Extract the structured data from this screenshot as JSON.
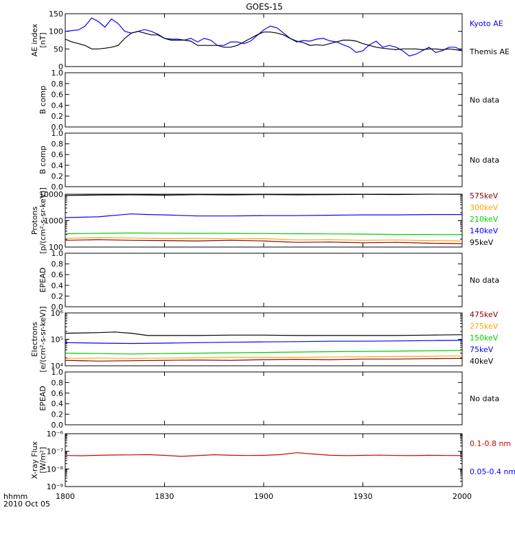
{
  "title": "GOES-15",
  "time_axis": {
    "ticks": [
      "1800",
      "1830",
      "1900",
      "1930",
      "2000"
    ],
    "label_row1": "hhmm",
    "label_row2": "2010 Oct 05"
  },
  "chart_data": [
    {
      "type": "line",
      "name": "ae",
      "ylabel": "AE index",
      "ylabel2": "[nT]",
      "ylim": [
        0,
        150
      ],
      "yticks": [
        "0",
        "50",
        "100",
        "150"
      ],
      "xlim": [
        0,
        120
      ],
      "series": [
        {
          "name": "Kyoto AE",
          "color": "#0000ff",
          "x": [
            0,
            2,
            4,
            6,
            8,
            10,
            12,
            14,
            16,
            18,
            20,
            22,
            24,
            26,
            28,
            30,
            32,
            34,
            36,
            38,
            40,
            42,
            44,
            46,
            48,
            50,
            52,
            54,
            56,
            58,
            60,
            62,
            64,
            66,
            68,
            70,
            72,
            74,
            76,
            78,
            80,
            82,
            84,
            86,
            88,
            90,
            92,
            94,
            96,
            98,
            100,
            102,
            104,
            106,
            108,
            110,
            112,
            114,
            116,
            118,
            120
          ],
          "y": [
            100,
            102,
            104,
            115,
            138,
            128,
            112,
            135,
            122,
            100,
            95,
            100,
            105,
            100,
            92,
            80,
            78,
            78,
            75,
            80,
            70,
            80,
            75,
            60,
            60,
            70,
            70,
            65,
            72,
            88,
            104,
            115,
            110,
            95,
            80,
            70,
            74,
            72,
            78,
            80,
            73,
            70,
            62,
            55,
            40,
            45,
            62,
            72,
            55,
            60,
            55,
            45,
            30,
            35,
            45,
            55,
            40,
            45,
            55,
            55,
            45
          ]
        },
        {
          "name": "Themis AE",
          "color": "#000000",
          "x": [
            0,
            2,
            4,
            6,
            8,
            10,
            12,
            14,
            16,
            18,
            20,
            22,
            24,
            26,
            28,
            30,
            32,
            34,
            36,
            38,
            40,
            42,
            44,
            46,
            48,
            50,
            52,
            54,
            56,
            58,
            60,
            62,
            64,
            66,
            68,
            70,
            72,
            74,
            76,
            78,
            80,
            82,
            84,
            86,
            88,
            90,
            92,
            94,
            96,
            98,
            100,
            102,
            104,
            106,
            108,
            110,
            112,
            114,
            116,
            118,
            120
          ],
          "y": [
            78,
            70,
            65,
            60,
            50,
            50,
            52,
            55,
            60,
            80,
            95,
            100,
            95,
            90,
            90,
            80,
            75,
            75,
            75,
            72,
            60,
            60,
            60,
            60,
            55,
            55,
            60,
            70,
            80,
            90,
            98,
            98,
            95,
            90,
            80,
            72,
            68,
            60,
            62,
            60,
            65,
            70,
            75,
            75,
            72,
            65,
            60,
            55,
            52,
            50,
            48,
            50,
            50,
            50,
            48,
            50,
            50,
            48,
            50,
            48,
            45
          ]
        }
      ],
      "legend": [
        {
          "text": "Kyoto AE",
          "color": "#0000ff"
        },
        {
          "text": "Themis AE",
          "color": "#000000"
        }
      ]
    },
    {
      "type": "line",
      "name": "bcomp1",
      "ylabel": "B comp",
      "ylim": [
        0,
        1
      ],
      "yticks": [
        "0.0",
        "0.2",
        "0.4",
        "0.6",
        "0.8",
        "1.0"
      ],
      "series": [],
      "status": "No data"
    },
    {
      "type": "line",
      "name": "bcomp2",
      "ylabel": "B comp",
      "ylim": [
        0,
        1
      ],
      "yticks": [
        "0.0",
        "0.2",
        "0.4",
        "0.6",
        "0.8",
        "1.0"
      ],
      "series": [],
      "status": "No data"
    },
    {
      "type": "line",
      "name": "protons",
      "ylabel": "Protons",
      "ylabel2": "[p/(cm²-s-sr-keV)]",
      "yscale": "log",
      "ylim": [
        100,
        10000
      ],
      "yticks": [
        "100",
        "1000",
        "10000"
      ],
      "xlim": [
        0,
        120
      ],
      "series": [
        {
          "name": "95keV",
          "color": "#000000",
          "x": [
            0,
            10,
            20,
            30,
            40,
            50,
            60,
            70,
            80,
            90,
            100,
            110,
            120
          ],
          "y": [
            9000,
            9300,
            9500,
            9200,
            9600,
            9400,
            9700,
            9500,
            9600,
            9800,
            9700,
            10000,
            9900
          ]
        },
        {
          "name": "140keV",
          "color": "#0000ff",
          "x": [
            0,
            10,
            20,
            25,
            30,
            40,
            50,
            60,
            70,
            80,
            90,
            100,
            110,
            120
          ],
          "y": [
            1300,
            1400,
            1800,
            1700,
            1650,
            1500,
            1500,
            1550,
            1550,
            1600,
            1650,
            1650,
            1700,
            1700
          ]
        },
        {
          "name": "210keV",
          "color": "#00cc00",
          "x": [
            0,
            10,
            20,
            30,
            40,
            50,
            60,
            70,
            80,
            90,
            100,
            110,
            120
          ],
          "y": [
            320,
            330,
            340,
            335,
            330,
            330,
            325,
            320,
            315,
            310,
            300,
            300,
            295
          ]
        },
        {
          "name": "300keV",
          "color": "#ffa500",
          "x": [
            0,
            10,
            20,
            30,
            40,
            50,
            60,
            70,
            80,
            90,
            100,
            110,
            120
          ],
          "y": [
            215,
            225,
            220,
            210,
            215,
            205,
            210,
            185,
            190,
            180,
            185,
            175,
            170
          ]
        },
        {
          "name": "575keV",
          "color": "#8b0000",
          "x": [
            0,
            10,
            20,
            30,
            40,
            50,
            60,
            70,
            80,
            90,
            100,
            110,
            120
          ],
          "y": [
            180,
            190,
            180,
            175,
            170,
            180,
            170,
            150,
            155,
            145,
            150,
            140,
            135
          ]
        }
      ],
      "legend": [
        {
          "text": "575keV",
          "color": "#8b0000"
        },
        {
          "text": "300keV",
          "color": "#ffa500"
        },
        {
          "text": "210keV",
          "color": "#00cc00"
        },
        {
          "text": "140keV",
          "color": "#0000ff"
        },
        {
          "text": "95keV",
          "color": "#000000"
        }
      ]
    },
    {
      "type": "line",
      "name": "epead1",
      "ylabel": "EPEAD",
      "ylim": [
        0,
        1
      ],
      "yticks": [
        "0.0",
        "0.2",
        "0.4",
        "0.6",
        "0.8",
        "1.0"
      ],
      "series": [],
      "status": "No data"
    },
    {
      "type": "line",
      "name": "electrons",
      "ylabel": "Electrons",
      "ylabel2": "[e/(cm²-s-sr-keV)]",
      "yscale": "log",
      "ylim": [
        10000,
        1000000
      ],
      "yticks": [
        "10⁴",
        "10⁵",
        "10⁶"
      ],
      "xlim": [
        0,
        120
      ],
      "series": [
        {
          "name": "40keV",
          "color": "#000000",
          "x": [
            0,
            10,
            15,
            20,
            25,
            30,
            40,
            50,
            60,
            70,
            80,
            90,
            100,
            110,
            120
          ],
          "y": [
            170000,
            180000,
            190000,
            170000,
            140000,
            140000,
            140000,
            145000,
            145000,
            140000,
            140000,
            140000,
            140000,
            145000,
            150000
          ]
        },
        {
          "name": "75keV",
          "color": "#0000ff",
          "x": [
            0,
            10,
            20,
            30,
            40,
            50,
            60,
            70,
            80,
            90,
            100,
            110,
            120
          ],
          "y": [
            75000,
            72000,
            70000,
            72000,
            75000,
            78000,
            80000,
            82000,
            85000,
            85000,
            87000,
            90000,
            92000
          ]
        },
        {
          "name": "150keV",
          "color": "#00cc00",
          "x": [
            0,
            10,
            20,
            30,
            40,
            50,
            60,
            70,
            80,
            90,
            100,
            110,
            120
          ],
          "y": [
            30000,
            29000,
            28000,
            29000,
            30000,
            31000,
            32000,
            33000,
            34000,
            35000,
            36000,
            37000,
            38000
          ]
        },
        {
          "name": "275keV",
          "color": "#ffa500",
          "x": [
            0,
            10,
            20,
            30,
            40,
            50,
            60,
            70,
            80,
            90,
            100,
            110,
            120
          ],
          "y": [
            19000,
            19500,
            19000,
            19500,
            20000,
            20500,
            21000,
            21000,
            21500,
            22000,
            22500,
            23000,
            23500
          ]
        },
        {
          "name": "475keV",
          "color": "#8b0000",
          "x": [
            0,
            10,
            20,
            30,
            40,
            50,
            60,
            70,
            80,
            90,
            100,
            110,
            120
          ],
          "y": [
            16000,
            15000,
            15500,
            16000,
            16500,
            16000,
            17000,
            17500,
            17000,
            18000,
            18000,
            18500,
            19000
          ]
        }
      ],
      "legend": [
        {
          "text": "475keV",
          "color": "#8b0000"
        },
        {
          "text": "275keV",
          "color": "#ffa500"
        },
        {
          "text": "150keV",
          "color": "#00cc00"
        },
        {
          "text": "75keV",
          "color": "#0000ff"
        },
        {
          "text": "40keV",
          "color": "#000000"
        }
      ]
    },
    {
      "type": "line",
      "name": "epead2",
      "ylabel": "EPEAD",
      "ylim": [
        0,
        1
      ],
      "yticks": [
        "0.0",
        "0.2",
        "0.4",
        "0.6",
        "0.8",
        "1.0"
      ],
      "series": [],
      "status": "No data"
    },
    {
      "type": "line",
      "name": "xray",
      "ylabel": "X-ray Flux",
      "ylabel2": "[W/m²]",
      "yscale": "log",
      "ylim": [
        1e-09,
        1e-06
      ],
      "yticks": [
        "10⁻⁹",
        "10⁻⁸",
        "10⁻⁷",
        "10⁻⁶"
      ],
      "xlim": [
        0,
        120
      ],
      "series": [
        {
          "name": "0.1-0.8 nm",
          "color": "#cc0000",
          "x": [
            0,
            5,
            10,
            15,
            20,
            25,
            30,
            35,
            40,
            45,
            50,
            55,
            60,
            65,
            70,
            75,
            80,
            85,
            90,
            95,
            100,
            105,
            110,
            115,
            120
          ],
          "y": [
            5.8e-08,
            5.6e-08,
            6e-08,
            6.2e-08,
            6.3e-08,
            6.5e-08,
            5.9e-08,
            5.2e-08,
            5.7e-08,
            6.4e-08,
            6e-08,
            5.8e-08,
            5.9e-08,
            6.5e-08,
            8.3e-08,
            7e-08,
            6e-08,
            5.7e-08,
            5.9e-08,
            6.1e-08,
            5.8e-08,
            5.7e-08,
            6e-08,
            5.8e-08,
            5.7e-08
          ]
        }
      ],
      "legend": [
        {
          "text": "0.1-0.8 nm",
          "color": "#cc0000"
        },
        {
          "text": "0.05-0.4 nm",
          "color": "#0000ff"
        }
      ]
    }
  ]
}
